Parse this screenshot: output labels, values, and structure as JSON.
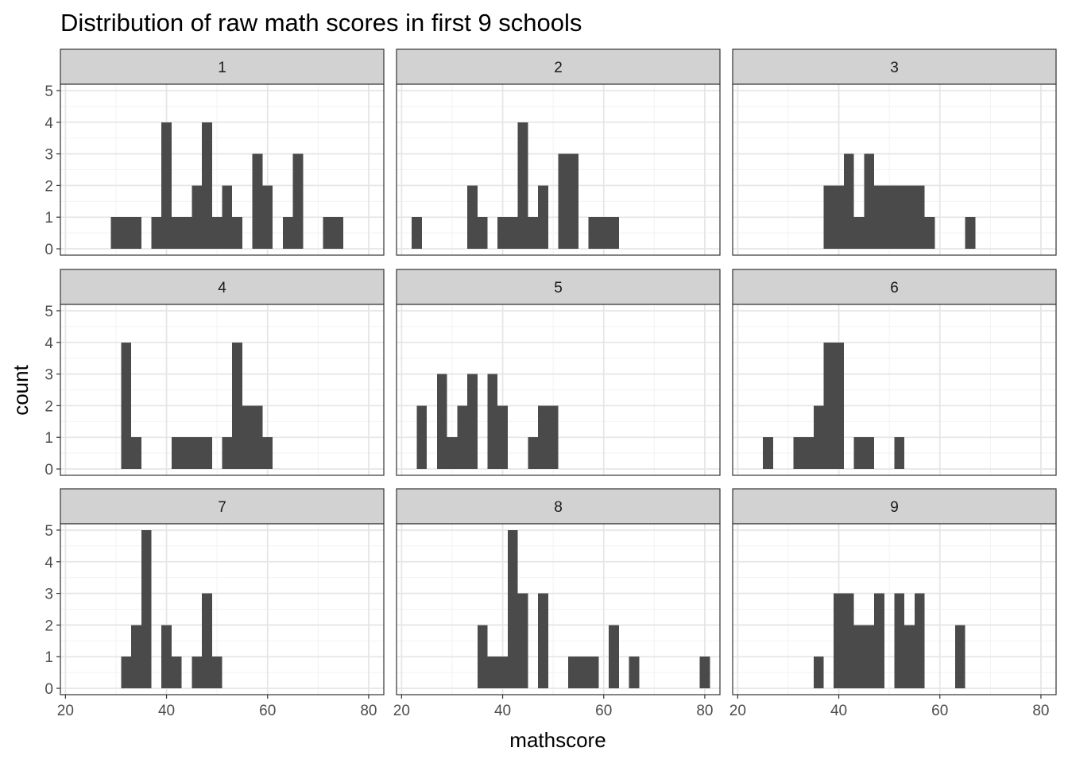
{
  "chart_data": {
    "type": "bar",
    "subtype": "faceted-histogram",
    "title": "Distribution of raw math scores in first 9 schools",
    "xlabel": "mathscore",
    "ylabel": "count",
    "xlim": [
      19,
      83
    ],
    "ylim": [
      -0.2,
      5.2
    ],
    "x_ticks": [
      20,
      40,
      60,
      80
    ],
    "y_ticks": [
      0,
      1,
      2,
      3,
      4,
      5
    ],
    "bin_width": 2,
    "bar_color": "#4a4a4a",
    "strip_color": "#d2d2d2",
    "grid": true,
    "facets": [
      {
        "label": "1",
        "bins": [
          [
            29,
            31,
            1
          ],
          [
            31,
            33,
            1
          ],
          [
            33,
            35,
            1
          ],
          [
            37,
            39,
            1
          ],
          [
            39,
            41,
            4
          ],
          [
            41,
            43,
            1
          ],
          [
            43,
            45,
            1
          ],
          [
            45,
            47,
            2
          ],
          [
            47,
            49,
            4
          ],
          [
            49,
            51,
            1
          ],
          [
            51,
            53,
            2
          ],
          [
            53,
            55,
            1
          ],
          [
            57,
            59,
            3
          ],
          [
            59,
            61,
            2
          ],
          [
            63,
            65,
            1
          ],
          [
            65,
            67,
            3
          ],
          [
            71,
            73,
            1
          ],
          [
            73,
            75,
            1
          ]
        ]
      },
      {
        "label": "2",
        "bins": [
          [
            22,
            24,
            1
          ],
          [
            33,
            35,
            2
          ],
          [
            35,
            37,
            1
          ],
          [
            39,
            41,
            1
          ],
          [
            41,
            43,
            1
          ],
          [
            43,
            45,
            4
          ],
          [
            45,
            47,
            1
          ],
          [
            47,
            49,
            2
          ],
          [
            51,
            53,
            3
          ],
          [
            53,
            55,
            3
          ],
          [
            57,
            59,
            1
          ],
          [
            59,
            61,
            1
          ],
          [
            61,
            63,
            1
          ]
        ]
      },
      {
        "label": "3",
        "bins": [
          [
            37,
            39,
            2
          ],
          [
            39,
            41,
            2
          ],
          [
            41,
            43,
            3
          ],
          [
            43,
            45,
            1
          ],
          [
            45,
            47,
            3
          ],
          [
            47,
            49,
            2
          ],
          [
            49,
            51,
            2
          ],
          [
            51,
            53,
            2
          ],
          [
            53,
            55,
            2
          ],
          [
            55,
            57,
            2
          ],
          [
            57,
            59,
            1
          ],
          [
            65,
            67,
            1
          ]
        ]
      },
      {
        "label": "4",
        "bins": [
          [
            31,
            33,
            4
          ],
          [
            33,
            35,
            1
          ],
          [
            41,
            43,
            1
          ],
          [
            43,
            45,
            1
          ],
          [
            45,
            47,
            1
          ],
          [
            47,
            49,
            1
          ],
          [
            51,
            53,
            1
          ],
          [
            53,
            55,
            4
          ],
          [
            55,
            57,
            2
          ],
          [
            57,
            59,
            2
          ],
          [
            59,
            61,
            1
          ]
        ]
      },
      {
        "label": "5",
        "bins": [
          [
            23,
            25,
            2
          ],
          [
            27,
            29,
            3
          ],
          [
            29,
            31,
            1
          ],
          [
            31,
            33,
            2
          ],
          [
            33,
            35,
            3
          ],
          [
            37,
            39,
            3
          ],
          [
            39,
            41,
            2
          ],
          [
            45,
            47,
            1
          ],
          [
            47,
            49,
            2
          ],
          [
            49,
            51,
            2
          ]
        ]
      },
      {
        "label": "6",
        "bins": [
          [
            25,
            27,
            1
          ],
          [
            31,
            33,
            1
          ],
          [
            33,
            35,
            1
          ],
          [
            35,
            37,
            2
          ],
          [
            37,
            39,
            4
          ],
          [
            39,
            41,
            4
          ],
          [
            43,
            45,
            1
          ],
          [
            45,
            47,
            1
          ],
          [
            51,
            53,
            1
          ]
        ]
      },
      {
        "label": "7",
        "bins": [
          [
            31,
            33,
            1
          ],
          [
            33,
            35,
            2
          ],
          [
            35,
            37,
            5
          ],
          [
            39,
            41,
            2
          ],
          [
            41,
            43,
            1
          ],
          [
            45,
            47,
            1
          ],
          [
            47,
            49,
            3
          ],
          [
            49,
            51,
            1
          ]
        ]
      },
      {
        "label": "8",
        "bins": [
          [
            35,
            37,
            2
          ],
          [
            37,
            39,
            1
          ],
          [
            39,
            41,
            1
          ],
          [
            41,
            43,
            5
          ],
          [
            43,
            45,
            3
          ],
          [
            47,
            49,
            3
          ],
          [
            53,
            55,
            1
          ],
          [
            55,
            57,
            1
          ],
          [
            57,
            59,
            1
          ],
          [
            61,
            63,
            2
          ],
          [
            65,
            67,
            1
          ],
          [
            79,
            81,
            1
          ]
        ]
      },
      {
        "label": "9",
        "bins": [
          [
            35,
            37,
            1
          ],
          [
            39,
            41,
            3
          ],
          [
            41,
            43,
            3
          ],
          [
            43,
            45,
            2
          ],
          [
            45,
            47,
            2
          ],
          [
            47,
            49,
            3
          ],
          [
            51,
            53,
            3
          ],
          [
            53,
            55,
            2
          ],
          [
            55,
            57,
            3
          ],
          [
            63,
            65,
            2
          ]
        ]
      }
    ]
  }
}
